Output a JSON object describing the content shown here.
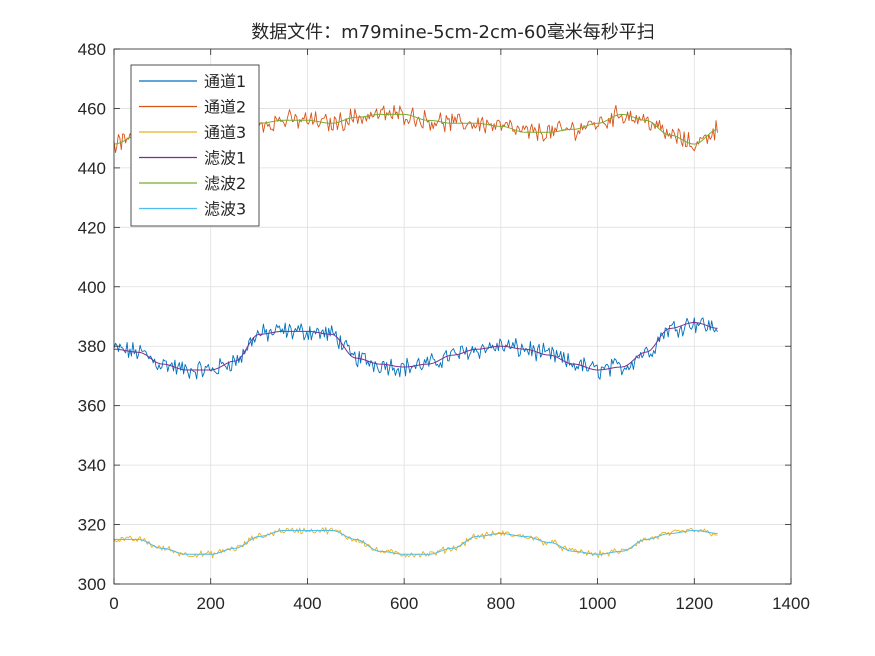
{
  "chart_data": {
    "type": "line",
    "title": "数据文件：m79mine-5cm-2cm-60毫米每秒平扫",
    "xlabel": "",
    "ylabel": "",
    "xlim": [
      0,
      1400
    ],
    "ylim": [
      300,
      480
    ],
    "xticks": [
      "0",
      "200",
      "400",
      "600",
      "800",
      "1000",
      "1200",
      "1400"
    ],
    "yticks": [
      "300",
      "320",
      "340",
      "360",
      "380",
      "400",
      "420",
      "440",
      "460",
      "480"
    ],
    "grid": true,
    "legend_position": "top-left",
    "series": [
      {
        "name": "通道1",
        "color": "#0072BD",
        "noisy": true,
        "x": [
          0,
          50,
          100,
          150,
          200,
          250,
          300,
          350,
          400,
          450,
          500,
          550,
          600,
          650,
          700,
          750,
          800,
          850,
          900,
          950,
          1000,
          1050,
          1100,
          1150,
          1200,
          1250
        ],
        "y": [
          379,
          378,
          374,
          372,
          372,
          375,
          384,
          385,
          385,
          384,
          376,
          374,
          373,
          374,
          377,
          379,
          380,
          379,
          377,
          374,
          372,
          373,
          378,
          386,
          388,
          386
        ]
      },
      {
        "name": "通道2",
        "color": "#D95319",
        "noisy": true,
        "x": [
          0,
          50,
          100,
          150,
          200,
          250,
          300,
          350,
          400,
          450,
          500,
          550,
          600,
          650,
          700,
          750,
          800,
          850,
          900,
          950,
          1000,
          1050,
          1100,
          1150,
          1200,
          1250
        ],
        "y": [
          448,
          451,
          452,
          453,
          453,
          454,
          455,
          456,
          456,
          455,
          457,
          458,
          458,
          456,
          455,
          455,
          454,
          452,
          452,
          453,
          455,
          458,
          456,
          451,
          448,
          453
        ]
      },
      {
        "name": "通道3",
        "color": "#EDB120",
        "noisy": true,
        "x": [
          0,
          50,
          100,
          150,
          200,
          250,
          300,
          350,
          400,
          450,
          500,
          550,
          600,
          650,
          700,
          750,
          800,
          850,
          900,
          950,
          1000,
          1050,
          1100,
          1150,
          1200,
          1250
        ],
        "y": [
          315,
          315,
          312,
          310,
          310,
          312,
          316,
          318,
          318,
          318,
          315,
          311,
          310,
          310,
          312,
          316,
          317,
          316,
          314,
          311,
          310,
          311,
          315,
          317,
          318,
          317
        ]
      },
      {
        "name": "滤波1",
        "color": "#7E2F8E",
        "noisy": false,
        "x": [
          0,
          50,
          100,
          150,
          200,
          250,
          300,
          350,
          400,
          450,
          500,
          550,
          600,
          650,
          700,
          750,
          800,
          850,
          900,
          950,
          1000,
          1050,
          1100,
          1150,
          1200,
          1250
        ],
        "y": [
          379,
          378,
          374,
          372,
          372,
          375,
          384,
          385,
          385,
          384,
          376,
          374,
          373,
          374,
          377,
          379,
          380,
          379,
          377,
          374,
          372,
          373,
          378,
          386,
          388,
          386
        ]
      },
      {
        "name": "滤波2",
        "color": "#77AC30",
        "noisy": false,
        "x": [
          0,
          50,
          100,
          150,
          200,
          250,
          300,
          350,
          400,
          450,
          500,
          550,
          600,
          650,
          700,
          750,
          800,
          850,
          900,
          950,
          1000,
          1050,
          1100,
          1150,
          1200,
          1250
        ],
        "y": [
          448,
          451,
          452,
          453,
          453,
          454,
          455,
          456,
          456,
          455,
          457,
          458,
          458,
          456,
          455,
          455,
          454,
          452,
          452,
          453,
          455,
          458,
          456,
          451,
          448,
          453
        ]
      },
      {
        "name": "滤波3",
        "color": "#4DBEEE",
        "noisy": false,
        "x": [
          0,
          50,
          100,
          150,
          200,
          250,
          300,
          350,
          400,
          450,
          500,
          550,
          600,
          650,
          700,
          750,
          800,
          850,
          900,
          950,
          1000,
          1050,
          1100,
          1150,
          1200,
          1250
        ],
        "y": [
          315,
          315,
          312,
          310,
          310,
          312,
          316,
          318,
          318,
          318,
          315,
          311,
          310,
          310,
          312,
          316,
          317,
          316,
          314,
          311,
          310,
          311,
          315,
          317,
          318,
          317
        ]
      }
    ]
  }
}
